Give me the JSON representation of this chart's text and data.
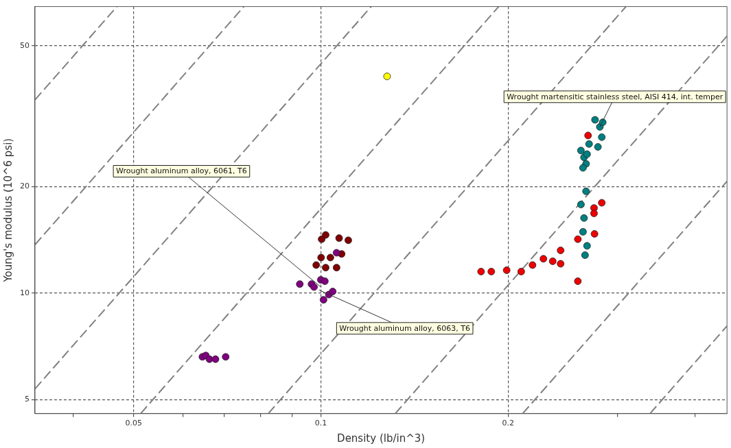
{
  "chart_data": {
    "type": "scatter",
    "xlabel": "Density (lb/in^3)",
    "ylabel": "Young's modulus (10^6 psi)",
    "log": "xy",
    "grid": true,
    "legend": false,
    "marker": "circle",
    "xlim": [
      0.0347,
      0.45
    ],
    "ylim": [
      4.56,
      64.6
    ],
    "xticks": [
      {
        "value": 0.04,
        "label": null
      },
      0.05,
      {
        "value": 0.06,
        "label": null
      },
      {
        "value": 0.07,
        "label": null
      },
      {
        "value": 0.08,
        "label": null
      },
      {
        "value": 0.09,
        "label": null
      },
      0.1,
      0.2,
      {
        "value": 0.3,
        "label": null
      },
      {
        "value": 0.4,
        "label": null
      }
    ],
    "yticks": [
      5,
      10,
      20,
      50
    ],
    "series": [
      {
        "type": "line",
        "color": "#808080",
        "line_style": "dashed",
        "marker": "none",
        "x": [
          0.0347,
          0.047
        ],
        "values": [
          35.2,
          64.6
        ]
      },
      {
        "type": "line",
        "color": "#808080",
        "line_style": "dashed",
        "marker": "none",
        "x": [
          0.0347,
          0.0752
        ],
        "values": [
          13.7,
          64.6
        ]
      },
      {
        "type": "line",
        "color": "#808080",
        "line_style": "dashed",
        "marker": "none",
        "x": [
          0.0347,
          0.1205
        ],
        "values": [
          5.36,
          64.6
        ]
      },
      {
        "type": "line",
        "color": "#808080",
        "line_style": "dashed",
        "marker": "none",
        "x": [
          0.0513,
          0.1932
        ],
        "values": [
          4.56,
          64.6
        ]
      },
      {
        "type": "line",
        "color": "#808080",
        "line_style": "dashed",
        "marker": "none",
        "x": [
          0.0823,
          0.3096
        ],
        "values": [
          4.56,
          64.6
        ]
      },
      {
        "type": "line",
        "color": "#808080",
        "line_style": "dashed",
        "marker": "none",
        "x": [
          0.1317,
          0.45
        ],
        "values": [
          4.56,
          53.3
        ]
      },
      {
        "type": "line",
        "color": "#808080",
        "line_style": "dashed",
        "marker": "none",
        "x": [
          0.2111,
          0.45
        ],
        "values": [
          4.56,
          20.7
        ]
      },
      {
        "type": "line",
        "color": "#808080",
        "line_style": "dashed",
        "marker": "none",
        "x": [
          0.3383,
          0.45
        ],
        "values": [
          4.56,
          8.07
        ]
      },
      {
        "type": "scatter",
        "color": "#800080",
        "x": [
          0.0925,
          0.0966,
          0.1,
          0.1015,
          0.103,
          0.101,
          0.1045,
          0.0975,
          0.106,
          0.0645,
          0.0653,
          0.0662,
          0.0677,
          0.0703
        ],
        "values": [
          10.6,
          10.6,
          10.9,
          10.8,
          9.9,
          9.57,
          10.1,
          10.4,
          13.0,
          6.6,
          6.66,
          6.5,
          6.5,
          6.6
        ]
      },
      {
        "type": "scatter",
        "color": "#800000",
        "x": [
          0.1018,
          0.1003,
          0.107,
          0.1107,
          0.1001,
          0.1036,
          0.108,
          0.0983,
          0.1018,
          0.106
        ],
        "values": [
          14.6,
          14.2,
          14.3,
          14.1,
          12.6,
          12.6,
          12.9,
          12.0,
          11.8,
          11.8
        ]
      },
      {
        "type": "scatter",
        "color": "#ffff00",
        "x": [
          0.1278
        ],
        "values": [
          41.0
        ]
      },
      {
        "type": "scatter",
        "color": "#ee0000",
        "x": [
          0.181,
          0.188,
          0.199,
          0.21,
          0.219,
          0.228,
          0.236,
          0.243,
          0.243,
          0.259,
          0.259,
          0.269,
          0.283,
          0.275,
          0.275,
          0.2755
        ],
        "values": [
          11.5,
          11.5,
          11.6,
          11.5,
          12.0,
          12.5,
          12.3,
          13.2,
          12.1,
          14.2,
          10.8,
          27.9,
          18.0,
          17.4,
          16.8,
          14.7
        ]
      },
      {
        "type": "scatter",
        "color": "#008080",
        "x": [
          0.276,
          0.281,
          0.283,
          0.279,
          0.284,
          0.262,
          0.265,
          0.267,
          0.27,
          0.264,
          0.268,
          0.262,
          0.265,
          0.267,
          0.264,
          0.268,
          0.266
        ],
        "values": [
          30.9,
          29.5,
          27.6,
          25.9,
          30.4,
          25.3,
          24.2,
          23.2,
          26.4,
          22.6,
          24.7,
          17.8,
          16.3,
          19.4,
          14.9,
          13.6,
          12.8
        ]
      }
    ],
    "annotations": [
      {
        "text": "Wrought aluminum alloy, 6061, T6",
        "x": 0.1,
        "y": 10.4
      },
      {
        "text": "Wrought aluminum alloy, 6063, T6",
        "x": 0.0993,
        "y": 10.2
      },
      {
        "text": "Wrought martensitic stainless steel, AISI 414, int. temper",
        "x": 0.281,
        "y": 29.5
      }
    ]
  }
}
